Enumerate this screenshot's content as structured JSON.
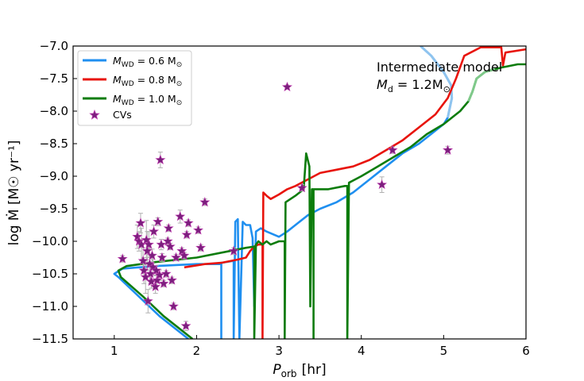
{
  "chart_data": {
    "type": "line",
    "title": "",
    "xlabel_main": "P",
    "xlabel_sub": "orb",
    "xlabel_unit": "[hr]",
    "ylabel": "log Ṁ [M☉ yr⁻¹]",
    "xlim": [
      0.5,
      6.0
    ],
    "ylim": [
      -11.5,
      -7.0
    ],
    "xticks": [
      1,
      2,
      3,
      4,
      5,
      6
    ],
    "xtick_labels": [
      "1",
      "2",
      "3",
      "4",
      "5",
      "6"
    ],
    "yticks": [
      -11.5,
      -11.0,
      -10.5,
      -10.0,
      -9.5,
      -9.0,
      -8.5,
      -8.0,
      -7.5,
      -7.0
    ],
    "ytick_labels": [
      "−11.5",
      "−11.0",
      "−10.5",
      "−10.0",
      "−9.5",
      "−9.0",
      "−8.5",
      "−8.0",
      "−7.5",
      "−7.0"
    ],
    "grid": false,
    "legend_position": "top-left",
    "annotation": {
      "line1": "Intermediate model",
      "line2_main": "M",
      "line2_sub": "d",
      "line2_rest": " = 1.2M",
      "line2_sym": "⊙"
    },
    "series": [
      {
        "name": "M_WD = 0.6 M☉",
        "legend_main": "M",
        "legend_sub": "WD",
        "legend_rest": " = 0.6 M",
        "legend_sym": "⊙",
        "color": "#1f8ff0",
        "light_color": "#8fc4ef",
        "points": [
          [
            1.9,
            -11.5
          ],
          [
            1.55,
            -11.15
          ],
          [
            1.3,
            -10.85
          ],
          [
            1.05,
            -10.55
          ],
          [
            1.0,
            -10.5
          ],
          [
            1.1,
            -10.42
          ],
          [
            1.5,
            -10.38
          ],
          [
            2.0,
            -10.35
          ],
          [
            2.3,
            -10.35
          ],
          [
            2.3,
            -11.5
          ],
          [
            2.3,
            -10.33
          ],
          [
            2.45,
            -10.3
          ],
          [
            2.45,
            -11.5
          ],
          [
            2.47,
            -9.7
          ],
          [
            2.5,
            -9.66
          ],
          [
            2.52,
            -11.5
          ],
          [
            2.56,
            -9.7
          ],
          [
            2.6,
            -9.75
          ],
          [
            2.65,
            -9.75
          ],
          [
            2.68,
            -9.95
          ],
          [
            2.7,
            -11.0
          ],
          [
            2.72,
            -9.85
          ],
          [
            2.78,
            -9.8
          ],
          [
            2.85,
            -9.85
          ],
          [
            3.0,
            -9.93
          ],
          [
            3.1,
            -9.85
          ],
          [
            3.2,
            -9.75
          ],
          [
            3.35,
            -9.6
          ],
          [
            3.5,
            -9.5
          ],
          [
            3.7,
            -9.4
          ],
          [
            3.9,
            -9.25
          ],
          [
            4.1,
            -9.05
          ],
          [
            4.3,
            -8.85
          ],
          [
            4.5,
            -8.65
          ],
          [
            4.7,
            -8.5
          ],
          [
            4.9,
            -8.3
          ],
          [
            5.0,
            -8.2
          ],
          [
            5.05,
            -8.1
          ],
          [
            5.1,
            -7.8
          ],
          [
            5.09,
            -7.6
          ],
          [
            5.0,
            -7.4
          ],
          [
            4.85,
            -7.15
          ],
          [
            4.72,
            -7.0
          ]
        ],
        "points_faded": [
          [
            5.05,
            -8.1
          ],
          [
            5.1,
            -7.8
          ],
          [
            5.09,
            -7.6
          ],
          [
            5.0,
            -7.4
          ],
          [
            4.85,
            -7.15
          ],
          [
            4.72,
            -7.0
          ]
        ]
      },
      {
        "name": "M_WD = 0.8 M☉",
        "legend_main": "M",
        "legend_sub": "WD",
        "legend_rest": " = 0.8 M",
        "legend_sym": "⊙",
        "color": "#e8140c",
        "points": [
          [
            1.85,
            -10.4
          ],
          [
            2.1,
            -10.35
          ],
          [
            2.3,
            -10.33
          ],
          [
            2.5,
            -10.28
          ],
          [
            2.6,
            -10.25
          ],
          [
            2.65,
            -10.15
          ],
          [
            2.7,
            -10.08
          ],
          [
            2.75,
            -10.05
          ],
          [
            2.8,
            -10.05
          ],
          [
            2.8,
            -11.5
          ],
          [
            2.81,
            -9.25
          ],
          [
            2.85,
            -9.3
          ],
          [
            2.9,
            -9.35
          ],
          [
            3.0,
            -9.28
          ],
          [
            3.1,
            -9.2
          ],
          [
            3.2,
            -9.15
          ],
          [
            3.35,
            -9.05
          ],
          [
            3.5,
            -8.95
          ],
          [
            3.7,
            -8.9
          ],
          [
            3.9,
            -8.85
          ],
          [
            4.1,
            -8.75
          ],
          [
            4.3,
            -8.6
          ],
          [
            4.5,
            -8.45
          ],
          [
            4.7,
            -8.25
          ],
          [
            4.9,
            -8.05
          ],
          [
            5.05,
            -7.8
          ],
          [
            5.15,
            -7.5
          ],
          [
            5.25,
            -7.15
          ],
          [
            5.45,
            -7.02
          ],
          [
            5.7,
            -7.02
          ],
          [
            5.72,
            -7.3
          ],
          [
            5.75,
            -7.1
          ],
          [
            6.0,
            -7.05
          ]
        ]
      },
      {
        "name": "M_WD = 1.0 M☉",
        "legend_main": "M",
        "legend_sub": "WD",
        "legend_rest": " = 1.0 M",
        "legend_sym": "⊙",
        "color": "#0c7c0c",
        "light_color": "#7fc98a",
        "points": [
          [
            1.95,
            -11.5
          ],
          [
            1.6,
            -11.15
          ],
          [
            1.35,
            -10.85
          ],
          [
            1.08,
            -10.55
          ],
          [
            1.05,
            -10.45
          ],
          [
            1.15,
            -10.38
          ],
          [
            1.5,
            -10.32
          ],
          [
            2.0,
            -10.25
          ],
          [
            2.4,
            -10.15
          ],
          [
            2.6,
            -10.1
          ],
          [
            2.7,
            -10.08
          ],
          [
            2.7,
            -11.5
          ],
          [
            2.72,
            -10.05
          ],
          [
            2.75,
            -10.0
          ],
          [
            2.8,
            -10.05
          ],
          [
            2.85,
            -10.0
          ],
          [
            2.9,
            -10.05
          ],
          [
            3.0,
            -10.0
          ],
          [
            3.07,
            -10.0
          ],
          [
            3.07,
            -11.5
          ],
          [
            3.08,
            -9.4
          ],
          [
            3.2,
            -9.3
          ],
          [
            3.25,
            -9.25
          ],
          [
            3.3,
            -9.2
          ],
          [
            3.33,
            -8.65
          ],
          [
            3.37,
            -8.85
          ],
          [
            3.38,
            -11.0
          ],
          [
            3.4,
            -9.2
          ],
          [
            3.42,
            -9.2
          ],
          [
            3.42,
            -11.5
          ],
          [
            3.42,
            -9.2
          ],
          [
            3.6,
            -9.2
          ],
          [
            3.8,
            -9.15
          ],
          [
            3.83,
            -9.15
          ],
          [
            3.83,
            -11.5
          ],
          [
            3.85,
            -9.1
          ],
          [
            4.0,
            -9.0
          ],
          [
            4.2,
            -8.85
          ],
          [
            4.4,
            -8.7
          ],
          [
            4.6,
            -8.55
          ],
          [
            4.8,
            -8.35
          ],
          [
            5.0,
            -8.2
          ],
          [
            5.2,
            -8.0
          ],
          [
            5.3,
            -7.85
          ],
          [
            5.35,
            -7.7
          ],
          [
            5.4,
            -7.5
          ],
          [
            5.5,
            -7.4
          ],
          [
            5.7,
            -7.33
          ],
          [
            5.9,
            -7.28
          ],
          [
            6.0,
            -7.28
          ]
        ],
        "points_faded": [
          [
            5.3,
            -7.85
          ],
          [
            5.35,
            -7.7
          ],
          [
            5.4,
            -7.5
          ],
          [
            5.5,
            -7.4
          ],
          [
            5.62,
            -7.35
          ]
        ]
      }
    ],
    "scatter": {
      "name": "CVs",
      "color": "#7b1f7d",
      "edge_color": "#c03fb0",
      "points": [
        {
          "x": 1.1,
          "y": -10.27,
          "err": 0.05
        },
        {
          "x": 1.28,
          "y": -9.93,
          "err": 0.18
        },
        {
          "x": 1.3,
          "y": -10.0,
          "err": 0.15
        },
        {
          "x": 1.32,
          "y": -9.72,
          "err": 0.15
        },
        {
          "x": 1.33,
          "y": -10.05,
          "err": 0.25
        },
        {
          "x": 1.35,
          "y": -10.3,
          "err": 0.2
        },
        {
          "x": 1.36,
          "y": -10.45,
          "err": 0.2
        },
        {
          "x": 1.38,
          "y": -10.55,
          "err": 0.25
        },
        {
          "x": 1.39,
          "y": -9.98,
          "err": 0.3
        },
        {
          "x": 1.4,
          "y": -10.15,
          "err": 0.3
        },
        {
          "x": 1.41,
          "y": -10.92,
          "err": 0.18
        },
        {
          "x": 1.42,
          "y": -10.05,
          "err": 0.2
        },
        {
          "x": 1.43,
          "y": -10.35,
          "err": 0.25
        },
        {
          "x": 1.44,
          "y": -10.5,
          "err": 0.15
        },
        {
          "x": 1.45,
          "y": -10.62,
          "err": 0.1
        },
        {
          "x": 1.46,
          "y": -10.22,
          "err": 0.1
        },
        {
          "x": 1.47,
          "y": -10.4,
          "err": 0.12
        },
        {
          "x": 1.48,
          "y": -9.85,
          "err": 0.1
        },
        {
          "x": 1.5,
          "y": -10.7,
          "err": 0.1
        },
        {
          "x": 1.51,
          "y": -10.45,
          "err": 0.08
        },
        {
          "x": 1.52,
          "y": -10.6,
          "err": 0.08
        },
        {
          "x": 1.53,
          "y": -9.7,
          "err": 0.06
        },
        {
          "x": 1.55,
          "y": -10.52,
          "err": 0.08
        },
        {
          "x": 1.56,
          "y": -8.75,
          "err": 0.12
        },
        {
          "x": 1.57,
          "y": -10.05,
          "err": 0.08
        },
        {
          "x": 1.58,
          "y": -10.25,
          "err": 0.06
        },
        {
          "x": 1.6,
          "y": -10.65,
          "err": 0.05
        },
        {
          "x": 1.63,
          "y": -10.5,
          "err": 0.05
        },
        {
          "x": 1.65,
          "y": -10.0,
          "err": 0.05
        },
        {
          "x": 1.66,
          "y": -9.8,
          "err": 0.05
        },
        {
          "x": 1.68,
          "y": -10.08,
          "err": 0.05
        },
        {
          "x": 1.7,
          "y": -10.6,
          "err": 0.05
        },
        {
          "x": 1.72,
          "y": -11.0,
          "err": 0.05
        },
        {
          "x": 1.75,
          "y": -10.25,
          "err": 0.05
        },
        {
          "x": 1.8,
          "y": -9.62,
          "err": 0.1
        },
        {
          "x": 1.82,
          "y": -10.15,
          "err": 0.05
        },
        {
          "x": 1.85,
          "y": -10.22,
          "err": 0.05
        },
        {
          "x": 1.87,
          "y": -11.3,
          "err": 0.07
        },
        {
          "x": 1.88,
          "y": -9.9,
          "err": 0.05
        },
        {
          "x": 1.9,
          "y": -9.72,
          "err": 0.05
        },
        {
          "x": 2.02,
          "y": -9.83,
          "err": 0.05
        },
        {
          "x": 2.05,
          "y": -10.1,
          "err": 0.05
        },
        {
          "x": 2.1,
          "y": -9.4,
          "err": 0.05
        },
        {
          "x": 2.45,
          "y": -10.15,
          "err": 0.05
        },
        {
          "x": 3.1,
          "y": -7.63,
          "err": 0.03
        },
        {
          "x": 3.28,
          "y": -9.18,
          "err": 0.05
        },
        {
          "x": 4.25,
          "y": -9.13,
          "err": 0.12
        },
        {
          "x": 4.38,
          "y": -8.6,
          "err": 0.05
        },
        {
          "x": 5.05,
          "y": -8.6,
          "err": 0.06
        }
      ]
    }
  }
}
